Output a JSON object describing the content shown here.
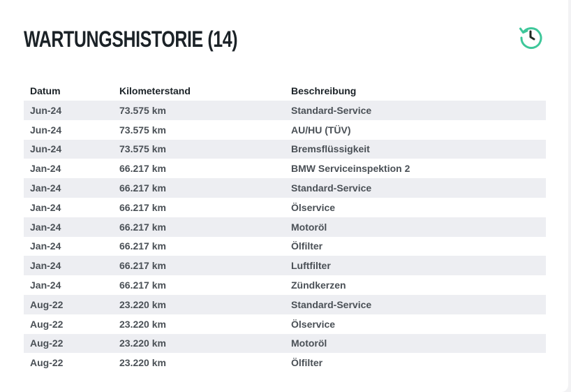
{
  "header": {
    "title": "WARTUNGSHISTORIE (14)",
    "icon": "history-icon",
    "icon_color": "#3ec79a"
  },
  "table": {
    "columns": [
      "Datum",
      "Kilometerstand",
      "Beschreibung"
    ],
    "rows": [
      [
        "Jun-24",
        "73.575 km",
        "Standard-Service"
      ],
      [
        "Jun-24",
        "73.575 km",
        "AU/HU (TÜV)"
      ],
      [
        "Jun-24",
        "73.575 km",
        "Bremsflüssigkeit"
      ],
      [
        "Jan-24",
        "66.217 km",
        "BMW Serviceinspektion 2"
      ],
      [
        "Jan-24",
        "66.217 km",
        "Standard-Service"
      ],
      [
        "Jan-24",
        "66.217 km",
        "Ölservice"
      ],
      [
        "Jan-24",
        "66.217 km",
        "Motoröl"
      ],
      [
        "Jan-24",
        "66.217 km",
        "Ölfilter"
      ],
      [
        "Jan-24",
        "66.217 km",
        "Luftfilter"
      ],
      [
        "Jan-24",
        "66.217 km",
        "Zündkerzen"
      ],
      [
        "Aug-22",
        "23.220 km",
        "Standard-Service"
      ],
      [
        "Aug-22",
        "23.220 km",
        "Ölservice"
      ],
      [
        "Aug-22",
        "23.220 km",
        "Motoröl"
      ],
      [
        "Aug-22",
        "23.220 km",
        "Ölfilter"
      ]
    ]
  }
}
